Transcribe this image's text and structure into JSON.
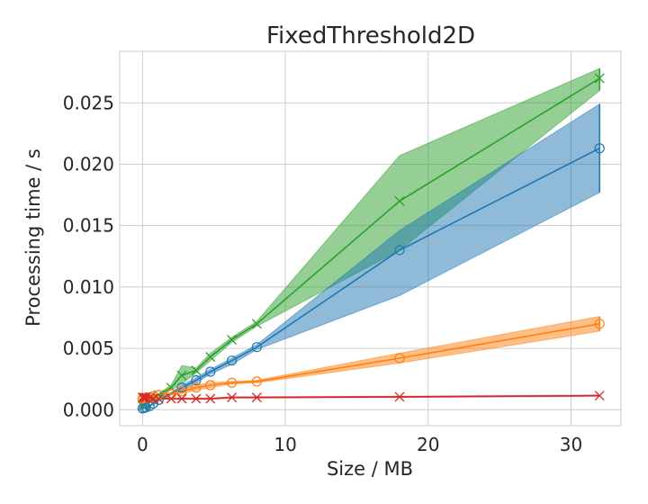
{
  "chart_data": {
    "type": "line",
    "title": "FixedThreshold2D",
    "xlabel": "Size / MB",
    "ylabel": "Processing time / s",
    "xlim": [
      -1.6,
      33.5
    ],
    "ylim": [
      -0.0013,
      0.0292
    ],
    "xticks": [
      0,
      10,
      20,
      30
    ],
    "xtick_labels": [
      "0",
      "10",
      "20",
      "30"
    ],
    "yticks": [
      0,
      0.005,
      0.01,
      0.015,
      0.02,
      0.025
    ],
    "ytick_labels": [
      "0.000",
      "0.005",
      "0.010",
      "0.015",
      "0.020",
      "0.025"
    ],
    "grid": true,
    "legend": "none",
    "series": [
      {
        "color": "#1f77b4",
        "marker": "circle",
        "x": [
          0,
          0.125,
          0.25,
          0.5,
          0.75,
          1.125,
          2,
          2.75,
          3.75,
          4.75,
          6.25,
          8,
          18,
          32
        ],
        "y": [
          0.0001,
          0.00015,
          0.0002,
          0.0003,
          0.0005,
          0.0008,
          0.0013,
          0.0018,
          0.0024,
          0.0031,
          0.004,
          0.0051,
          0.013,
          0.0213
        ],
        "lower": [
          5e-05,
          0.0001,
          0.00015,
          0.00025,
          0.00045,
          0.0007,
          0.0012,
          0.0016,
          0.0022,
          0.0029,
          0.0037,
          0.0049,
          0.0093,
          0.0177
        ],
        "upper": [
          0.00015,
          0.0002,
          0.00025,
          0.00035,
          0.00055,
          0.0009,
          0.0014,
          0.002,
          0.0026,
          0.0033,
          0.0042,
          0.0053,
          0.0146,
          0.0249
        ]
      },
      {
        "color": "#ff7f0e",
        "marker": "circle",
        "x": [
          0,
          0.125,
          0.25,
          0.5,
          0.75,
          1.125,
          2,
          2.75,
          3.75,
          4.75,
          6.25,
          8,
          18,
          32
        ],
        "y": [
          0.0009,
          0.00095,
          0.001,
          0.001,
          0.0011,
          0.0012,
          0.0013,
          0.0015,
          0.0018,
          0.002,
          0.0022,
          0.0023,
          0.0042,
          0.007
        ],
        "lower": [
          0.0008,
          0.00085,
          0.0009,
          0.0009,
          0.001,
          0.0011,
          0.0012,
          0.0013,
          0.0016,
          0.0018,
          0.0021,
          0.0022,
          0.0038,
          0.0064
        ],
        "upper": [
          0.001,
          0.00105,
          0.0011,
          0.0011,
          0.0012,
          0.0013,
          0.0014,
          0.0017,
          0.002,
          0.0022,
          0.0023,
          0.0024,
          0.0046,
          0.0076
        ]
      },
      {
        "color": "#2ca02c",
        "marker": "x",
        "x": [
          0,
          0.125,
          0.25,
          0.5,
          0.75,
          1.125,
          2,
          2.75,
          3.75,
          4.75,
          6.25,
          8,
          18,
          32
        ],
        "y": [
          0.0003,
          0.0004,
          0.0005,
          0.0007,
          0.0009,
          0.0012,
          0.0018,
          0.0028,
          0.0032,
          0.0043,
          0.0057,
          0.007,
          0.017,
          0.027
        ],
        "lower": [
          0.0002,
          0.0003,
          0.0004,
          0.0006,
          0.0008,
          0.0011,
          0.0016,
          0.0021,
          0.003,
          0.004,
          0.0055,
          0.0068,
          0.013,
          0.026
        ],
        "upper": [
          0.0004,
          0.0005,
          0.0006,
          0.0008,
          0.001,
          0.0013,
          0.002,
          0.0036,
          0.0034,
          0.0046,
          0.0059,
          0.0072,
          0.0207,
          0.0278
        ]
      },
      {
        "color": "#d62728",
        "marker": "x",
        "x": [
          0,
          0.125,
          0.25,
          0.5,
          0.75,
          1.125,
          2,
          2.75,
          3.75,
          4.75,
          6.25,
          8,
          18,
          32
        ],
        "y": [
          0.001,
          0.001,
          0.001,
          0.001,
          0.0009,
          0.0009,
          0.0009,
          0.0009,
          0.0009,
          0.0009,
          0.001,
          0.001,
          0.00105,
          0.00115
        ],
        "lower": [
          0.00095,
          0.00095,
          0.00095,
          0.00095,
          0.00085,
          0.00085,
          0.00085,
          0.00085,
          0.00085,
          0.00085,
          0.00095,
          0.00095,
          0.001,
          0.0011
        ],
        "upper": [
          0.00105,
          0.00105,
          0.00105,
          0.00105,
          0.00095,
          0.00095,
          0.00095,
          0.00095,
          0.00095,
          0.00095,
          0.00105,
          0.00105,
          0.0011,
          0.0012
        ]
      }
    ]
  }
}
